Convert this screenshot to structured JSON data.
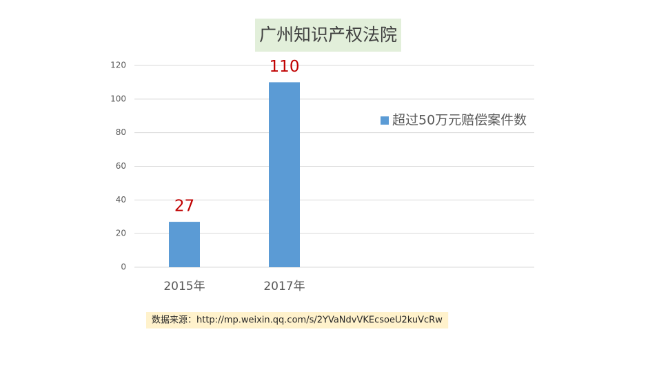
{
  "chart_data": {
    "type": "bar",
    "title": "广州知识产权法院",
    "categories": [
      "2015年",
      "2017年",
      null,
      null
    ],
    "series": [
      {
        "name": "超过50万元赔偿案件数",
        "color": "#5b9bd5",
        "values": [
          27,
          110,
          null,
          null
        ]
      }
    ],
    "ylim": [
      0,
      120
    ],
    "yticks": [
      0,
      20,
      40,
      60,
      80,
      100,
      120
    ],
    "grid": true,
    "legend": "right",
    "source": "数据来源：http://mp.weixin.qq.com/s/2YVaNdvVKEcsoeU2kuVcRw"
  }
}
